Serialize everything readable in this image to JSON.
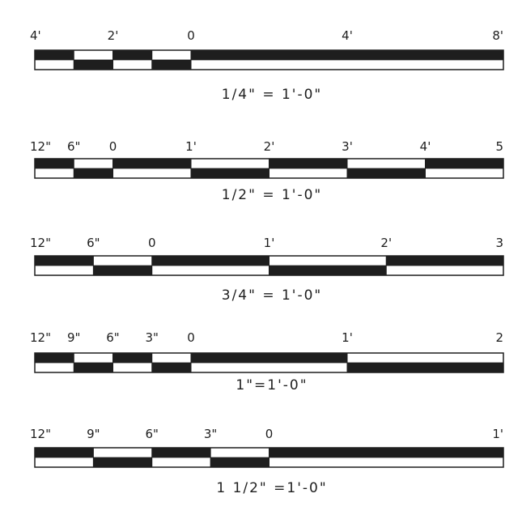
{
  "colors": {
    "ink": "#1e1e1e",
    "paper": "#ffffff",
    "hatch": "#3a3a3a"
  },
  "scales": [
    {
      "caption": "1/4\" = 1'-0\"",
      "tick_labels": [
        "4'",
        "2'",
        "0",
        "4'",
        "8'"
      ],
      "ticks_ft": [
        -4,
        -2,
        0,
        4,
        8
      ],
      "dividers_ft": [
        -4,
        -3,
        -2,
        -1,
        0,
        8
      ],
      "left_ft": -4,
      "right_ft": 8
    },
    {
      "caption": "1/2\" = 1'-0\"",
      "tick_labels": [
        "12\"",
        "6\"",
        "0",
        "1'",
        "2'",
        "3'",
        "4'",
        "5"
      ],
      "ticks_ft": [
        -1,
        -0.5,
        0,
        1,
        2,
        3,
        4,
        5
      ],
      "dividers_ft": [
        -1,
        -0.5,
        0,
        1,
        2,
        3,
        4
      ],
      "left_ft": -1,
      "right_ft": 5
    },
    {
      "caption": "3/4\" = 1'-0\"",
      "tick_labels": [
        "12\"",
        "6\"",
        "0",
        "1'",
        "2'",
        "3"
      ],
      "ticks_ft": [
        -1,
        -0.5,
        0,
        1,
        2,
        3
      ],
      "dividers_ft": [
        -1,
        -0.5,
        0,
        1,
        2
      ],
      "left_ft": -1,
      "right_ft": 3
    },
    {
      "caption": "1\"=1'-0\"",
      "tick_labels": [
        "12\"",
        "9\"",
        "6\"",
        "3\"",
        "0",
        "1'",
        "2"
      ],
      "ticks_ft": [
        -1,
        -0.75,
        -0.5,
        -0.25,
        0,
        1,
        2
      ],
      "dividers_ft": [
        -1,
        -0.75,
        -0.5,
        -0.25,
        0,
        1
      ],
      "left_ft": -1,
      "right_ft": 2
    },
    {
      "caption": "1  1/2\" =1'-0\"",
      "tick_labels": [
        "12\"",
        "9\"",
        "6\"",
        "3\"",
        "0",
        "1'"
      ],
      "ticks_ft": [
        -1,
        -0.75,
        -0.5,
        -0.25,
        0,
        1
      ],
      "dividers_ft": [
        -1,
        -0.75,
        -0.5,
        -0.25,
        0
      ],
      "left_ft": -1,
      "right_ft": 1
    }
  ]
}
